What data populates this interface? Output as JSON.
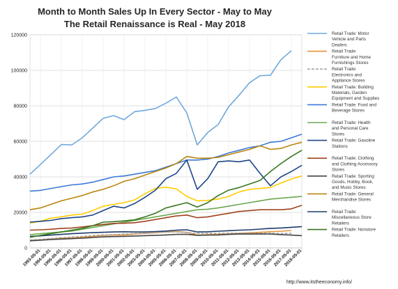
{
  "chart_data": {
    "type": "line",
    "title_lines": [
      "Month to Month Sales Up In Every Sector - May to May",
      "The Retail Renaissance is Real - May 2018"
    ],
    "xlabel": "",
    "ylabel": "",
    "ylim": [
      0,
      120000
    ],
    "y_ticks": [
      0,
      20000,
      40000,
      60000,
      80000,
      100000,
      120000
    ],
    "y_tick_labels": [
      "0",
      "20000",
      "40000",
      "60000",
      "80000",
      "100000",
      "120000"
    ],
    "x": [
      "1992-05-01",
      "1993-05-01",
      "1994-05-01",
      "1995-05-01",
      "1996-05-01",
      "1997-05-01",
      "1998-05-01",
      "1999-05-01",
      "2000-05-01",
      "2001-05-01",
      "2002-05-01",
      "2003-05-01",
      "2004-05-01",
      "2005-05-01",
      "2006-05-01",
      "2007-05-01",
      "2008-05-01",
      "2009-05-01",
      "2010-05-01",
      "2011-05-01",
      "2012-05-01",
      "2013-05-01",
      "2014-05-01",
      "2015-05-01",
      "2016-05-01",
      "2017-05-01",
      "2018-05-01"
    ],
    "x_tick_labels": [
      "1993-05-01",
      "1994-05-01",
      "1995-05-01",
      "1996-05-01",
      "1997-05-01",
      "1998-05-01",
      "1999-05-01",
      "2000-05-01",
      "2001-05-01",
      "2002-05-01",
      "2003-05-01",
      "2004-05-01",
      "2005-05-01",
      "2006-05-01",
      "2007-05-01",
      "2008-05-01",
      "2009-05-01",
      "2010-05-01",
      "2011-05-01",
      "2012-05-01",
      "2013-05-01",
      "2014-05-01",
      "2015-05-01",
      "2016-05-01",
      "2017-05-01",
      "2018-05-01"
    ],
    "grid": true,
    "legend_position": "right",
    "source_text": "http://www.itstheeconomy.info/",
    "series": [
      {
        "name": "Retail Trade: Motor Vehicle and Parts Dealers",
        "color": "#6fa8dc",
        "dash": "solid",
        "values": [
          41500,
          47000,
          52500,
          58200,
          58000,
          62000,
          67500,
          73000,
          74500,
          72200,
          76700,
          77500,
          78500,
          81500,
          85000,
          76000,
          58000,
          65000,
          69500,
          79500,
          86000,
          93000,
          97000,
          97200,
          106000,
          111000,
          null
        ]
      },
      {
        "name": "Retail Trade: Furniture and Home Furnishings Stores",
        "color": "#e69138",
        "dash": "solid",
        "values": [
          4200,
          4500,
          5000,
          5400,
          5700,
          6000,
          6400,
          7000,
          7200,
          7300,
          7800,
          8200,
          8500,
          9000,
          9200,
          8800,
          7200,
          7400,
          7600,
          7800,
          8200,
          8500,
          8800,
          9100,
          9400,
          9800,
          null
        ]
      },
      {
        "name": "Retail Trade: Electronics and Appliance Stores",
        "color": "#a6a6a6",
        "dash": "dashed",
        "values": [
          4500,
          4800,
          5300,
          5800,
          6100,
          6500,
          7000,
          7300,
          7500,
          7800,
          8100,
          8300,
          8600,
          8900,
          9000,
          8700,
          8100,
          8200,
          8200,
          8300,
          8300,
          8200,
          8300,
          8200,
          8100,
          8200,
          null
        ]
      },
      {
        "name": "Retail Trade: Building Materials, Garden Equipment and Supplies",
        "color": "#ffcc00",
        "dash": "solid",
        "values": [
          14000,
          15000,
          16800,
          17500,
          18500,
          19000,
          21000,
          23500,
          24500,
          25500,
          27000,
          30500,
          33500,
          34200,
          33200,
          29000,
          26500,
          26800,
          27500,
          29000,
          31500,
          33000,
          33500,
          34000,
          36500,
          38800,
          40500
        ]
      },
      {
        "name": "Retail Trade: Food and Beverage Stores",
        "color": "#3c78d8",
        "dash": "solid",
        "values": [
          32000,
          32400,
          33500,
          34500,
          35500,
          36000,
          37000,
          38500,
          40000,
          40500,
          41500,
          42500,
          43500,
          45500,
          47500,
          49500,
          49500,
          50000,
          51500,
          53500,
          55000,
          56500,
          57500,
          59500,
          60000,
          62000,
          64000
        ]
      },
      {
        "name": "Retail Trade: Health and Personal Care Stores",
        "color": "#6aa84f",
        "dash": "solid",
        "values": [
          7500,
          8000,
          8500,
          9000,
          9500,
          10500,
          11500,
          12500,
          13500,
          14500,
          15500,
          16500,
          17500,
          18500,
          19500,
          20500,
          21500,
          21800,
          22500,
          23500,
          24500,
          25500,
          26500,
          27500,
          28000,
          28500,
          29000
        ]
      },
      {
        "name": "Retail Trade: Gasoline Stations",
        "color": "#1c4587",
        "dash": "solid",
        "values": [
          14500,
          15000,
          15500,
          16500,
          17000,
          17500,
          18500,
          21000,
          23500,
          22500,
          25000,
          28500,
          32500,
          39000,
          42000,
          49500,
          33000,
          39000,
          48500,
          49000,
          48500,
          49500,
          42000,
          35000,
          40000,
          43000,
          46500
        ]
      },
      {
        "name": "Retail Trade: Clothing and Clothing Accessory Stores",
        "color": "#a0431f",
        "dash": "solid",
        "values": [
          10000,
          10200,
          10500,
          11000,
          11200,
          11800,
          12500,
          13200,
          13800,
          13900,
          14200,
          15000,
          16000,
          17000,
          18000,
          18500,
          17000,
          17500,
          18500,
          19500,
          20500,
          21000,
          21500,
          21500,
          21500,
          22000,
          24000
        ]
      },
      {
        "name": "Retail Trade: Sporting Goods, Hobby, Book, and Music Stores",
        "color": "#434343",
        "dash": "solid",
        "values": [
          4000,
          4300,
          4700,
          5000,
          5200,
          5500,
          5900,
          6200,
          6400,
          6500,
          6700,
          6900,
          7100,
          7300,
          7600,
          7700,
          7100,
          7200,
          7300,
          7600,
          7800,
          7800,
          7900,
          7800,
          7500,
          7200,
          6900
        ]
      },
      {
        "name": "Retail Trade: General Merchandise Stores",
        "color": "#b8860b",
        "dash": "solid",
        "values": [
          21500,
          22500,
          24500,
          26500,
          28000,
          29500,
          31500,
          33000,
          35000,
          37500,
          39000,
          41000,
          43000,
          45000,
          47500,
          51500,
          50500,
          50500,
          51000,
          52500,
          54000,
          55500,
          57500,
          55500,
          56000,
          58000,
          59500
        ]
      },
      {
        "name": "Retail Trade: Miscellaneous Store Retailers",
        "color": "#1f3a68",
        "dash": "solid",
        "values": [
          6500,
          6800,
          7200,
          7600,
          8000,
          8300,
          8600,
          8800,
          9000,
          9100,
          9000,
          9000,
          9200,
          9500,
          10000,
          10200,
          9000,
          9100,
          9400,
          9700,
          10000,
          10200,
          10600,
          11000,
          11200,
          11600,
          12000
        ]
      },
      {
        "name": "Retail Trade: Nonstore Retailers",
        "color": "#38761d",
        "dash": "solid",
        "values": [
          6000,
          7000,
          8000,
          9000,
          10000,
          11000,
          12500,
          14500,
          14800,
          15200,
          15800,
          17500,
          19500,
          22500,
          24000,
          25500,
          23000,
          25500,
          29500,
          32500,
          34000,
          36000,
          38000,
          43000,
          47500,
          51500,
          55000
        ]
      }
    ]
  }
}
